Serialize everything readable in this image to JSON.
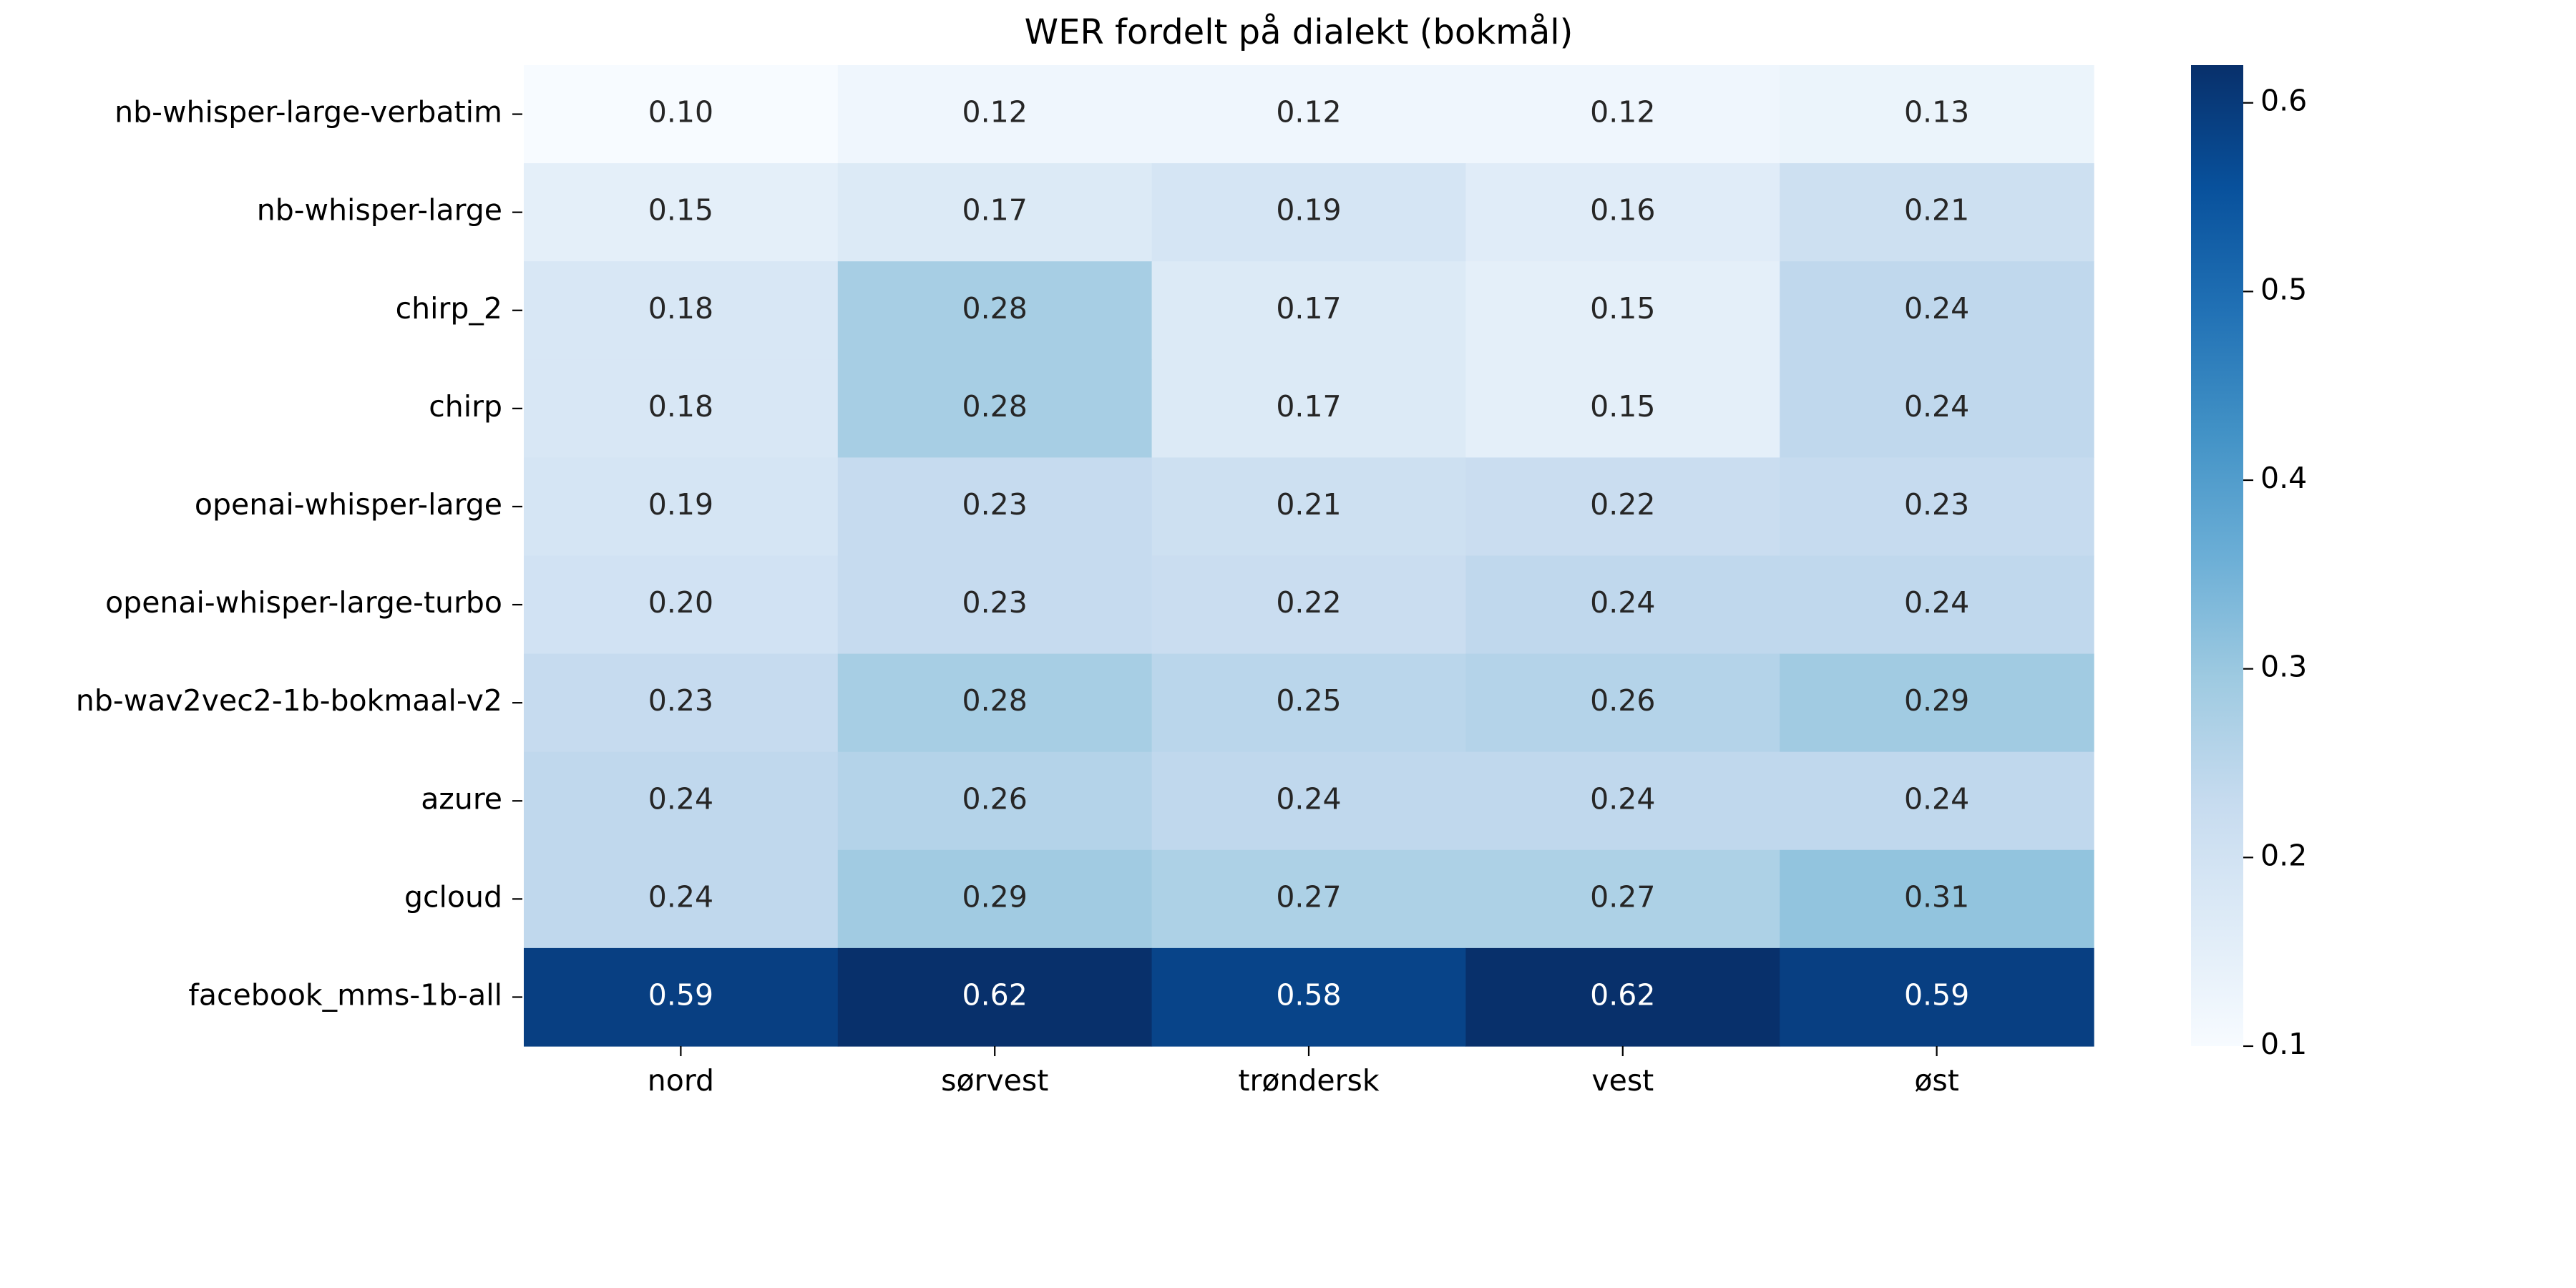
{
  "chart_data": {
    "type": "heatmap",
    "title": "WER fordelt på dialekt (bokmål)",
    "xlabel": "",
    "ylabel": "",
    "colormap": "Blues",
    "colorbar": {
      "range": [
        0.1,
        0.62
      ],
      "ticks": [
        "0.1",
        "0.2",
        "0.3",
        "0.4",
        "0.5",
        "0.6"
      ]
    },
    "columns": [
      "nord",
      "sørvest",
      "trøndersk",
      "vest",
      "øst"
    ],
    "rows": [
      "nb-whisper-large-verbatim",
      "nb-whisper-large",
      "chirp_2",
      "chirp",
      "openai-whisper-large",
      "openai-whisper-large-turbo",
      "nb-wav2vec2-1b-bokmaal-v2",
      "azure",
      "gcloud",
      "facebook_mms-1b-all"
    ],
    "values": [
      [
        0.1,
        0.12,
        0.12,
        0.12,
        0.13
      ],
      [
        0.15,
        0.17,
        0.19,
        0.16,
        0.21
      ],
      [
        0.18,
        0.28,
        0.17,
        0.15,
        0.24
      ],
      [
        0.18,
        0.28,
        0.17,
        0.15,
        0.24
      ],
      [
        0.19,
        0.23,
        0.21,
        0.22,
        0.23
      ],
      [
        0.2,
        0.23,
        0.22,
        0.24,
        0.24
      ],
      [
        0.23,
        0.28,
        0.25,
        0.26,
        0.29
      ],
      [
        0.24,
        0.26,
        0.24,
        0.24,
        0.24
      ],
      [
        0.24,
        0.29,
        0.27,
        0.27,
        0.31
      ],
      [
        0.59,
        0.62,
        0.58,
        0.62,
        0.59
      ]
    ],
    "annotations": [
      [
        "0.10",
        "0.12",
        "0.12",
        "0.12",
        "0.13"
      ],
      [
        "0.15",
        "0.17",
        "0.19",
        "0.16",
        "0.21"
      ],
      [
        "0.18",
        "0.28",
        "0.17",
        "0.15",
        "0.24"
      ],
      [
        "0.18",
        "0.28",
        "0.17",
        "0.15",
        "0.24"
      ],
      [
        "0.19",
        "0.23",
        "0.21",
        "0.22",
        "0.23"
      ],
      [
        "0.20",
        "0.23",
        "0.22",
        "0.24",
        "0.24"
      ],
      [
        "0.23",
        "0.28",
        "0.25",
        "0.26",
        "0.29"
      ],
      [
        "0.24",
        "0.26",
        "0.24",
        "0.24",
        "0.24"
      ],
      [
        "0.24",
        "0.29",
        "0.27",
        "0.27",
        "0.31"
      ],
      [
        "0.59",
        "0.62",
        "0.58",
        "0.62",
        "0.59"
      ]
    ]
  }
}
